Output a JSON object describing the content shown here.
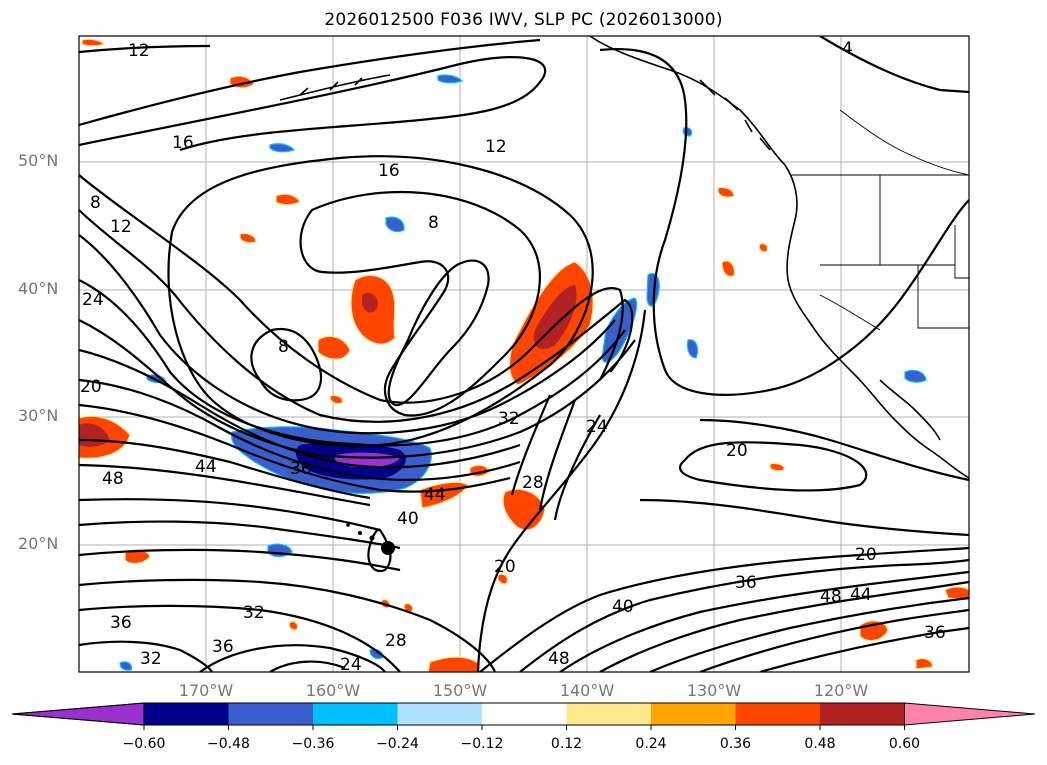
{
  "title": "2026012500 F036 IWV, SLP PC (2026013000)",
  "lat_labels": [
    "50°N",
    "40°N",
    "30°N",
    "20°N"
  ],
  "lon_labels": [
    "170°W",
    "160°W",
    "150°W",
    "140°W",
    "130°W",
    "120°W"
  ],
  "colorbar": {
    "tick_labels": [
      "−0.60",
      "−0.48",
      "−0.36",
      "−0.24",
      "−0.12",
      "0.12",
      "0.24",
      "0.36",
      "0.48",
      "0.60"
    ],
    "colors": [
      "#9b30d0",
      "#00008b",
      "#3a5fcd",
      "#00bfff",
      "#b0e2ff",
      "#ffffff",
      "#ffe88c",
      "#ffa500",
      "#ff4500",
      "#b22222",
      "#ff82ab"
    ]
  },
  "contour_labels": [
    "12",
    "4",
    "16",
    "12",
    "16",
    "8",
    "8",
    "12",
    "24",
    "8",
    "20",
    "32",
    "24",
    "20",
    "44",
    "36",
    "48",
    "28",
    "44",
    "40",
    "20",
    "20",
    "36",
    "40",
    "48",
    "44",
    "36",
    "36",
    "32",
    "36",
    "28",
    "32",
    "24",
    "48"
  ],
  "colors": {
    "land": "#000000",
    "positive": "#ff4500",
    "negative": "#3a5fcd",
    "grid": "#b0b0b0",
    "axis_label": "#777777"
  }
}
